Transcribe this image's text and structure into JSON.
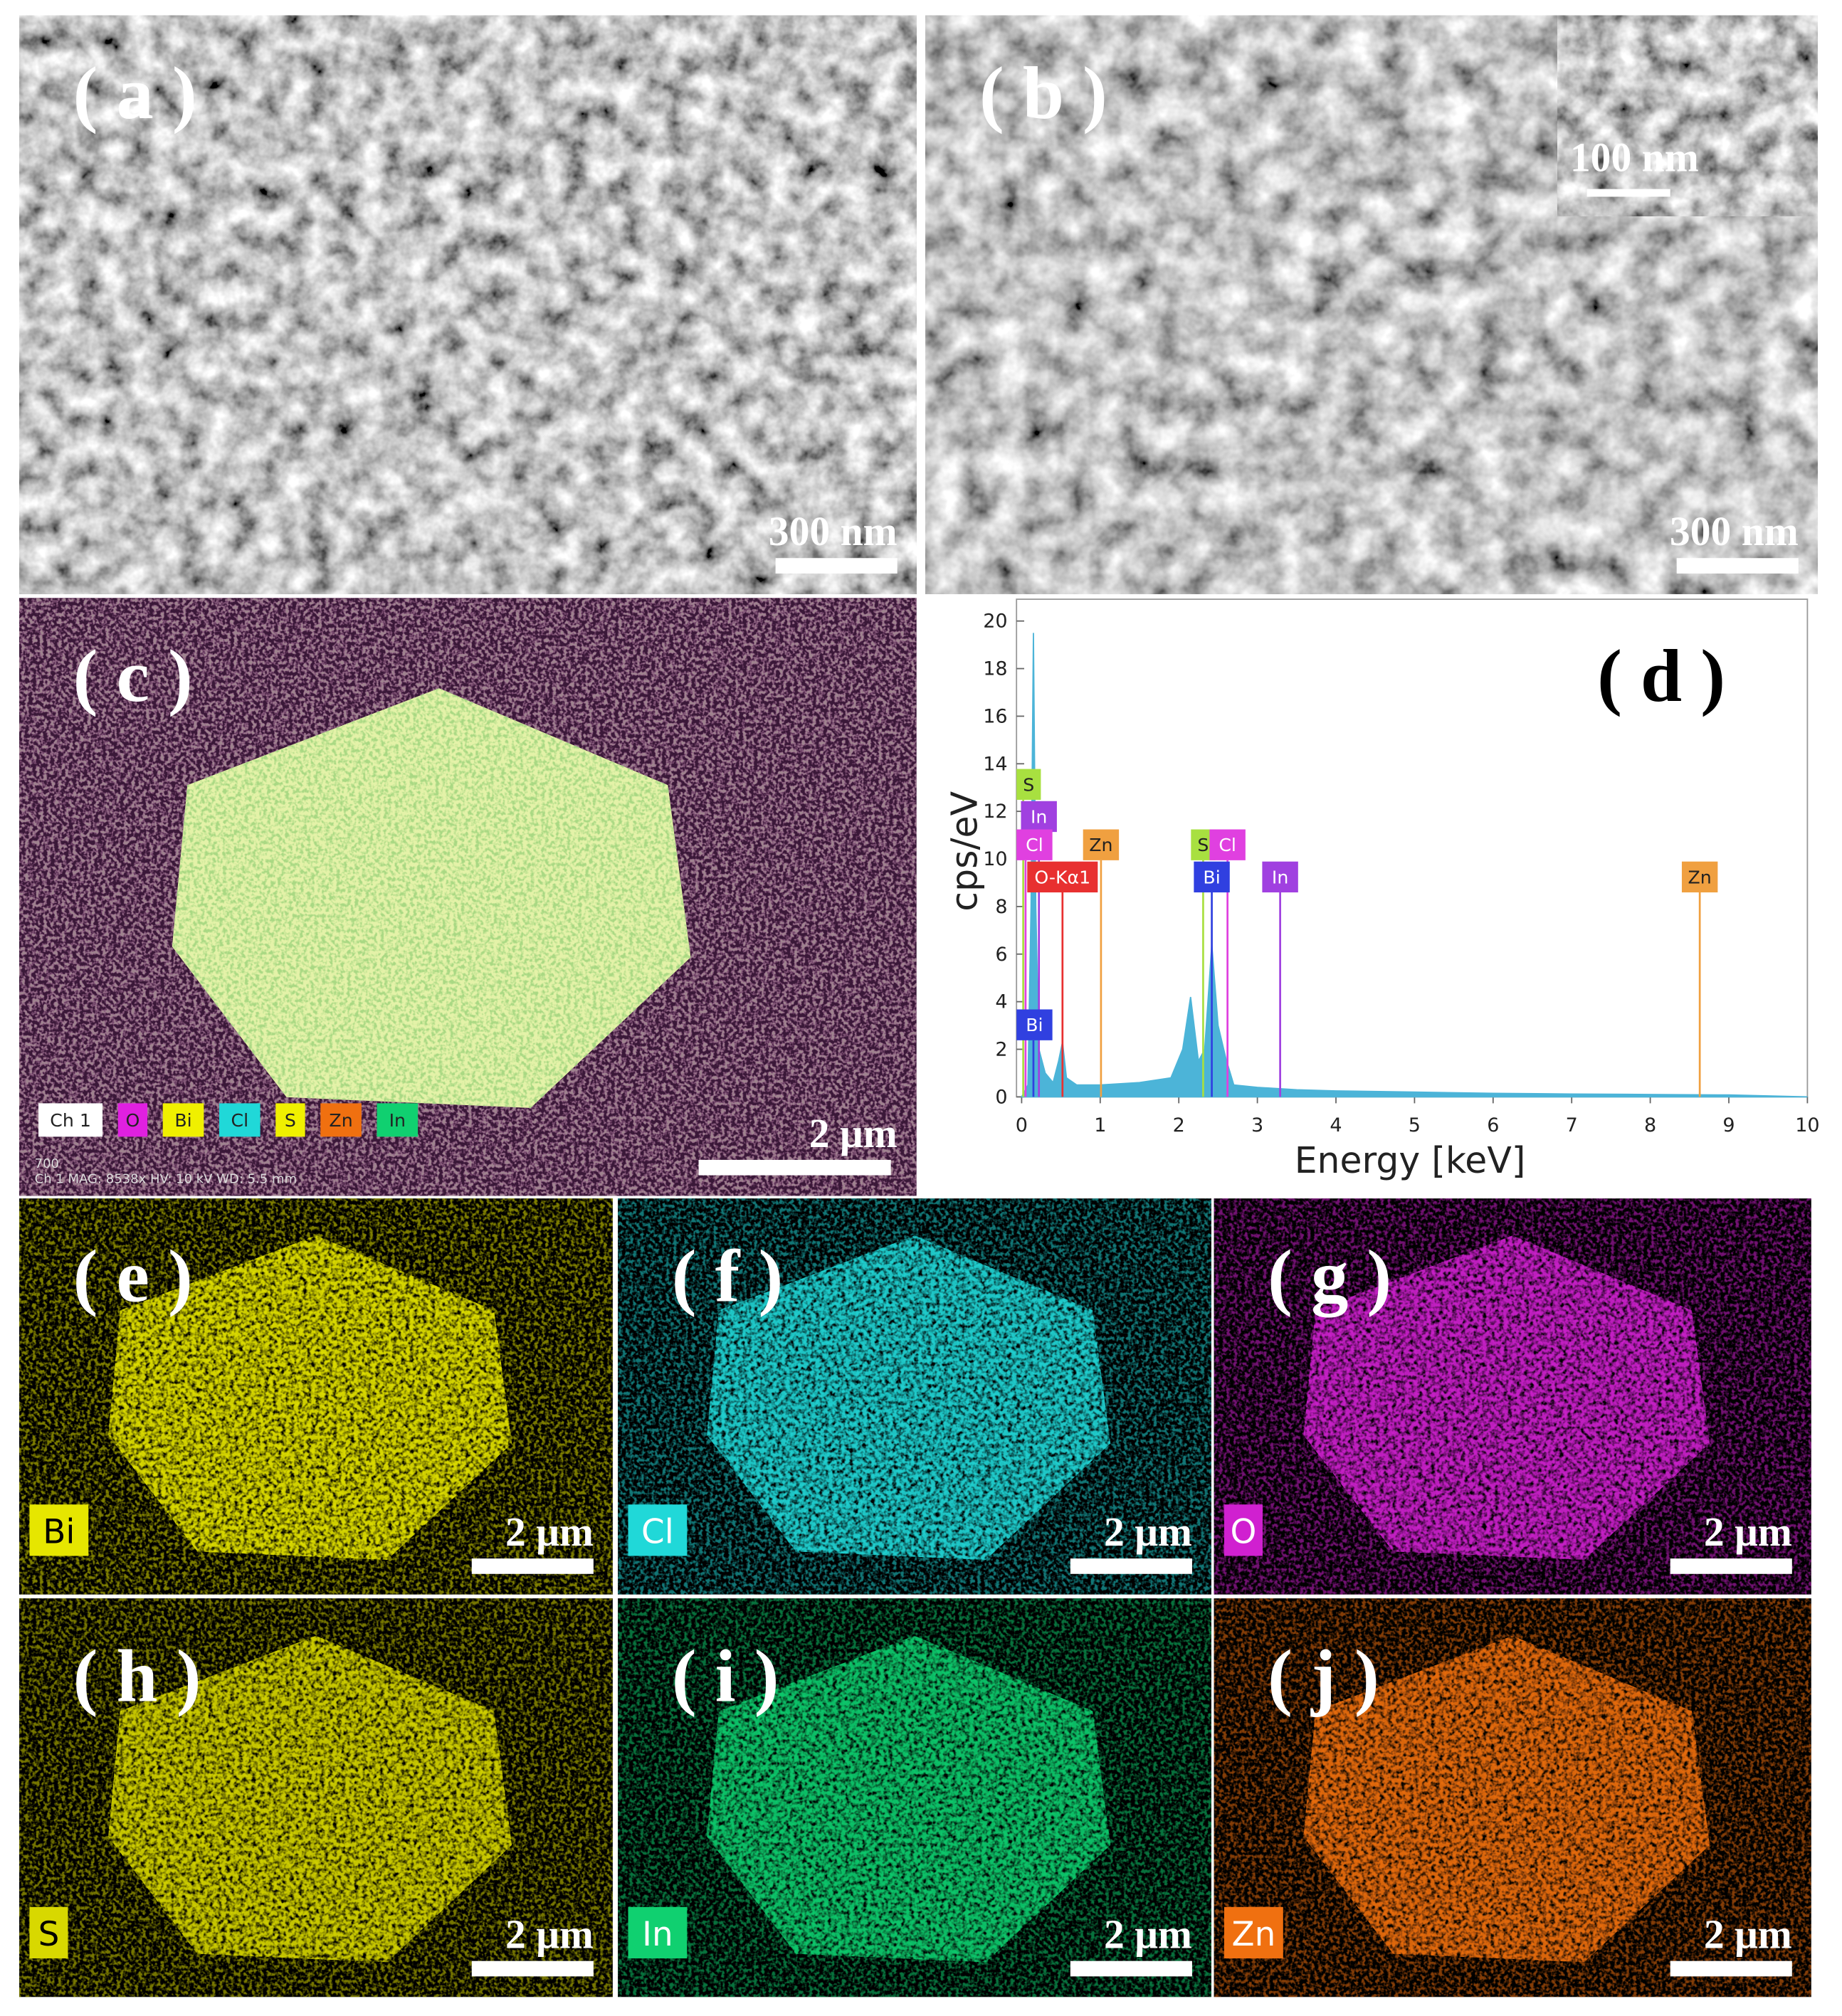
{
  "panels": [
    {
      "label": "( a )",
      "scale_bar": "300 nm"
    },
    {
      "label": "( b )",
      "scale_bar": "300 nm",
      "inset_scale_bar": "100 nm"
    },
    {
      "label": "( c )",
      "scale_bar": "2 μm",
      "legend": [
        "Ch 1",
        "O",
        "Bi",
        "Cl",
        "S",
        "Zn",
        "In"
      ],
      "footer": [
        "700",
        "Ch 1   MAG: 8538x   HV: 10 kV   WD: 5.5 mm"
      ]
    },
    {
      "label": "( e )",
      "element": "Bi",
      "color": "#e6e600",
      "scale_bar": "2 μm"
    },
    {
      "label": "( f )",
      "element": "Cl",
      "color": "#20d8d8",
      "scale_bar": "2 μm"
    },
    {
      "label": "( g )",
      "element": "O",
      "color": "#d020d0",
      "scale_bar": "2 μm"
    },
    {
      "label": "( h )",
      "element": "S",
      "color": "#d8d800",
      "scale_bar": "2 μm"
    },
    {
      "label": "( i )",
      "element": "In",
      "color": "#10d070",
      "scale_bar": "2 μm"
    },
    {
      "label": "( j )",
      "element": "Zn",
      "color": "#f07010",
      "scale_bar": "2 μm"
    }
  ],
  "chart_data": {
    "type": "area",
    "label": "( d )",
    "x_label": "Energy [keV]",
    "y_label": "cps/eV",
    "color": "#4cb4d8",
    "x": [
      0,
      0.08,
      0.12,
      0.15,
      0.18,
      0.22,
      0.3,
      0.4,
      0.47,
      0.52,
      0.57,
      0.7,
      1.0,
      1.5,
      1.9,
      2.05,
      2.15,
      2.25,
      2.33,
      2.42,
      2.5,
      2.6,
      2.7,
      3.0,
      3.5,
      4.0,
      5,
      6,
      7,
      8,
      9,
      10
    ],
    "values": [
      0,
      0.5,
      8,
      19.5,
      8,
      2,
      1,
      0.6,
      1.5,
      2.3,
      0.8,
      0.5,
      0.5,
      0.6,
      0.8,
      2,
      4.2,
      1.5,
      2,
      6.4,
      3,
      1.6,
      0.5,
      0.4,
      0.3,
      0.25,
      0.2,
      0.15,
      0.12,
      0.1,
      0.08,
      0
    ],
    "xlim": [
      0,
      10
    ],
    "ylim": [
      0,
      20.7
    ],
    "xticks": [
      0,
      1,
      2,
      3,
      4,
      5,
      6,
      7,
      8,
      9,
      10
    ],
    "yticks": [
      0,
      2,
      4,
      6,
      8,
      10,
      12,
      14,
      16,
      18,
      20
    ],
    "peak_labels": [
      {
        "label": "S",
        "energy": 0.02,
        "color": "#a8e040"
      },
      {
        "label": "In",
        "energy": 0.22,
        "color": "#a040e0"
      },
      {
        "label": "Cl",
        "energy": 0.05,
        "color": "#e040e0"
      },
      {
        "label": "Zn",
        "energy": 1.01,
        "color": "#f0a040"
      },
      {
        "label": "O-Kα1",
        "energy": 0.52,
        "color": "#e83030"
      },
      {
        "label": "S",
        "energy": 2.31,
        "color": "#a8e040"
      },
      {
        "label": "Cl",
        "energy": 2.62,
        "color": "#e040e0"
      },
      {
        "label": "Bi",
        "energy": 2.42,
        "color": "#3040e0"
      },
      {
        "label": "In",
        "energy": 3.29,
        "color": "#a040e0"
      },
      {
        "label": "Zn",
        "energy": 8.63,
        "color": "#f0a040"
      },
      {
        "label": "Bi",
        "energy": 0.15,
        "color": "#3040e0"
      }
    ]
  }
}
